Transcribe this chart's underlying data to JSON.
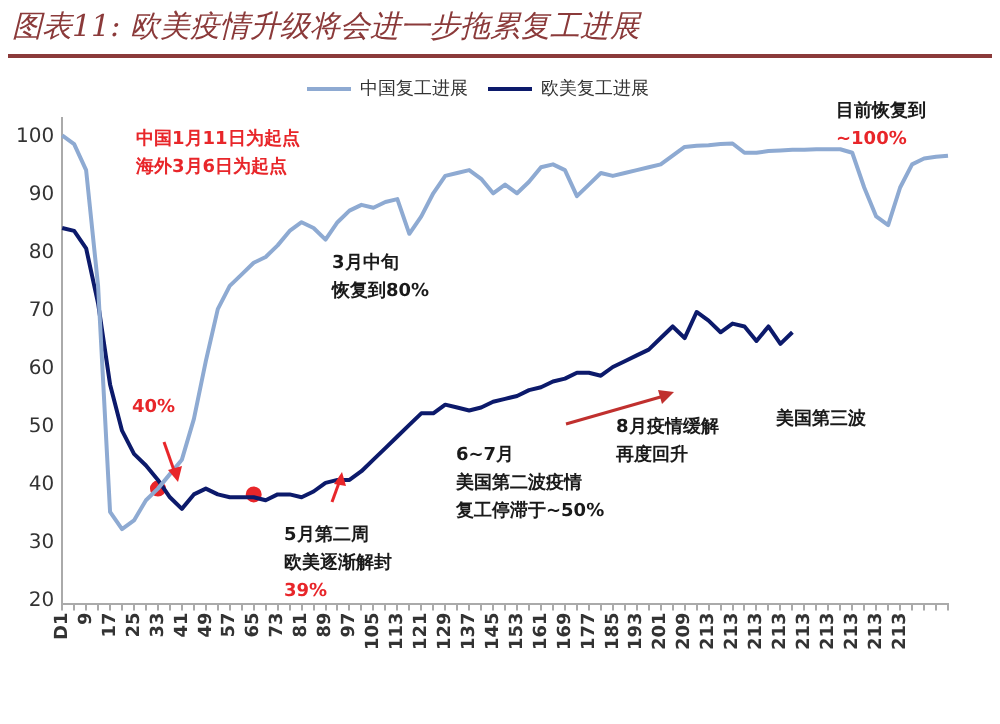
{
  "chart_data": {
    "type": "line",
    "title": "图表11: 欧美疫情升级将会进一步拖累复工进展",
    "categories": [
      "D1",
      null,
      "9",
      null,
      "17",
      null,
      "25",
      null,
      "33",
      null,
      "41",
      null,
      "49",
      null,
      "57",
      null,
      "65",
      null,
      "73",
      null,
      "81",
      null,
      "89",
      null,
      "97",
      null,
      "105",
      null,
      "113",
      null,
      "121",
      null,
      "129",
      null,
      "137",
      null,
      "145",
      null,
      "153",
      null,
      "161",
      null,
      "169",
      null,
      "177",
      null,
      "185",
      null,
      "193",
      null,
      "201",
      null,
      "209",
      null,
      "213",
      null,
      "213",
      null,
      "213",
      null,
      "213",
      null,
      "213",
      null,
      "213",
      null,
      "213",
      null,
      "213",
      null,
      "213",
      null,
      null,
      null,
      null
    ],
    "series": [
      {
        "name": "中国复工进展",
        "color": "#8eaad2",
        "values": [
          101,
          99.5,
          95,
          75,
          36,
          33,
          34.5,
          38,
          40,
          42.5,
          45,
          52,
          62,
          71,
          75,
          77,
          79,
          80,
          82,
          84.5,
          86,
          85,
          83,
          86,
          88,
          89,
          88.5,
          89.5,
          90,
          84,
          87,
          91,
          94,
          94.5,
          95,
          93.5,
          91,
          92.5,
          91,
          93,
          95.5,
          96,
          95,
          90.5,
          92.5,
          94.5,
          94,
          94.5,
          95,
          95.5,
          96,
          97.5,
          99,
          99.2,
          99.3,
          99.5,
          99.6,
          98,
          98,
          98.3,
          98.4,
          98.5,
          98.5,
          98.6,
          98.6,
          98.6,
          98,
          92,
          87,
          85.5,
          92,
          96,
          97,
          97.3,
          97.5
        ]
      },
      {
        "name": "欧美复工进展",
        "color": "#0c1a6b",
        "values": [
          85,
          84.5,
          81.5,
          72,
          58,
          50,
          46,
          44,
          41.5,
          38.5,
          36.5,
          39,
          40,
          39,
          38.5,
          38.5,
          38.5,
          38,
          39,
          39,
          38.5,
          39.5,
          41,
          41.5,
          41.5,
          43,
          45,
          47,
          49,
          51,
          53,
          53,
          54.5,
          54,
          53.5,
          54,
          55,
          55.5,
          56,
          57,
          57.5,
          58.5,
          59,
          60,
          60,
          59.5,
          61,
          62,
          63,
          64,
          66,
          68,
          66,
          70.5,
          69,
          67,
          68.5,
          68,
          65.5,
          68,
          65,
          67,
          null,
          null,
          null,
          null,
          null,
          null,
          null,
          null,
          null,
          null,
          null,
          null,
          null
        ]
      },
      {
        "type": "scatter",
        "color": "#e8262a",
        "marker": "circle",
        "x": [
          "33",
          "65"
        ],
        "values": [
          40,
          39
        ]
      }
    ],
    "ylim": [
      20,
      104
    ],
    "yticks": [
      20,
      30,
      40,
      50,
      60,
      70,
      80,
      90,
      100
    ],
    "legend": "top",
    "annotations": [
      "中国1月11日为起点海外3月6日为起点",
      "3月中旬恢复到80%",
      "目前恢复到\n~100%",
      "40%",
      "5月第二周欧美逐渐解封",
      "39%",
      "6~7月美国第二波疫情复工停滞于~50%",
      "8月疫情缓解再度回升",
      "美国第三波"
    ]
  }
}
